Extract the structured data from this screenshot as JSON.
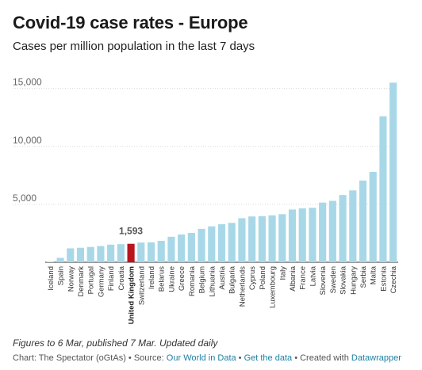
{
  "header": {
    "title": "Covid-19 case rates - Europe",
    "subtitle": "Cases per million population in the last 7 days"
  },
  "footer": {
    "notes": "Figures to 6 Mar, published 7 Mar. Updated daily",
    "source_prefix": "Chart: The Spectator (oGtAs) • Source: ",
    "source_link": "Our World in Data",
    "sep1": " • ",
    "get_data": "Get the data",
    "sep2": " • Created with ",
    "created_with": "Datawrapper"
  },
  "colors": {
    "bar": "#a8d8e8",
    "highlight": "#b8151e",
    "grid": "#d9d9d9",
    "link": "#1d81a2"
  },
  "chart_data": {
    "type": "bar",
    "ylim": [
      0,
      16000
    ],
    "yticks": [
      5000,
      10000,
      15000
    ],
    "ytick_labels": [
      "5,000",
      "10,000",
      "15,000"
    ],
    "highlight": "United Kingdom",
    "highlight_label": "1,593",
    "categories": [
      "Iceland",
      "Spain",
      "Norway",
      "Denmark",
      "Portugal",
      "Germany",
      "Finland",
      "Croatia",
      "United Kingdom",
      "Switzerland",
      "Ireland",
      "Belarus",
      "Ukraine",
      "Greece",
      "Romania",
      "Belgium",
      "Lithuania",
      "Austria",
      "Bulgaria",
      "Netherlands",
      "Cyprus",
      "Poland",
      "Luxembourg",
      "Italy",
      "Albania",
      "France",
      "Latvia",
      "Slovenia",
      "Sweden",
      "Slovakia",
      "Hungary",
      "Serbia",
      "Malta",
      "Estonia",
      "Czechia"
    ],
    "values": [
      50,
      380,
      1200,
      1250,
      1320,
      1400,
      1520,
      1560,
      1593,
      1700,
      1720,
      1850,
      2200,
      2400,
      2530,
      2880,
      3100,
      3280,
      3400,
      3800,
      3950,
      3980,
      4050,
      4150,
      4550,
      4650,
      4700,
      5150,
      5300,
      5800,
      6200,
      7050,
      7800,
      12600,
      15500
    ]
  }
}
